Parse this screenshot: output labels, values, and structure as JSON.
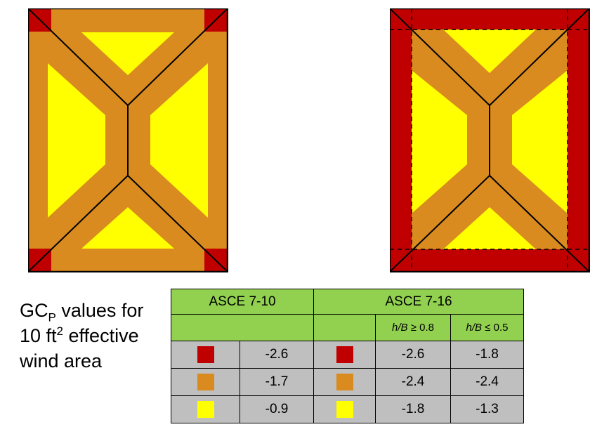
{
  "colors": {
    "corner": "#c00000",
    "edge": "#d98b1f",
    "interior": "#ffff00",
    "header_bg": "#92d050",
    "cell_bg": "#bfbfbf"
  },
  "caption": {
    "line1_pre": "GC",
    "line1_sub": "P",
    "line1_post": " values for",
    "line2_pre": "10 ft",
    "line2_sup": "2",
    "line2_post": " effective",
    "line3": "wind area"
  },
  "table": {
    "col_asce710": "ASCE 7-10",
    "col_asce716": "ASCE 7-16",
    "sub_h1_var": "h/B",
    "sub_h1_cond": " ≥ 0.8",
    "sub_h2_var": "h/B",
    "sub_h2_cond": " ≤ 0.5",
    "rows": [
      {
        "zone": "corner",
        "v710": "-2.6",
        "v716a": "-2.6",
        "v716b": "-1.8"
      },
      {
        "zone": "edge",
        "v710": "-1.7",
        "v716a": "-2.4",
        "v716b": "-2.4"
      },
      {
        "zone": "interior",
        "v710": "-0.9",
        "v716a": "-1.8",
        "v716b": "-1.3"
      }
    ]
  }
}
